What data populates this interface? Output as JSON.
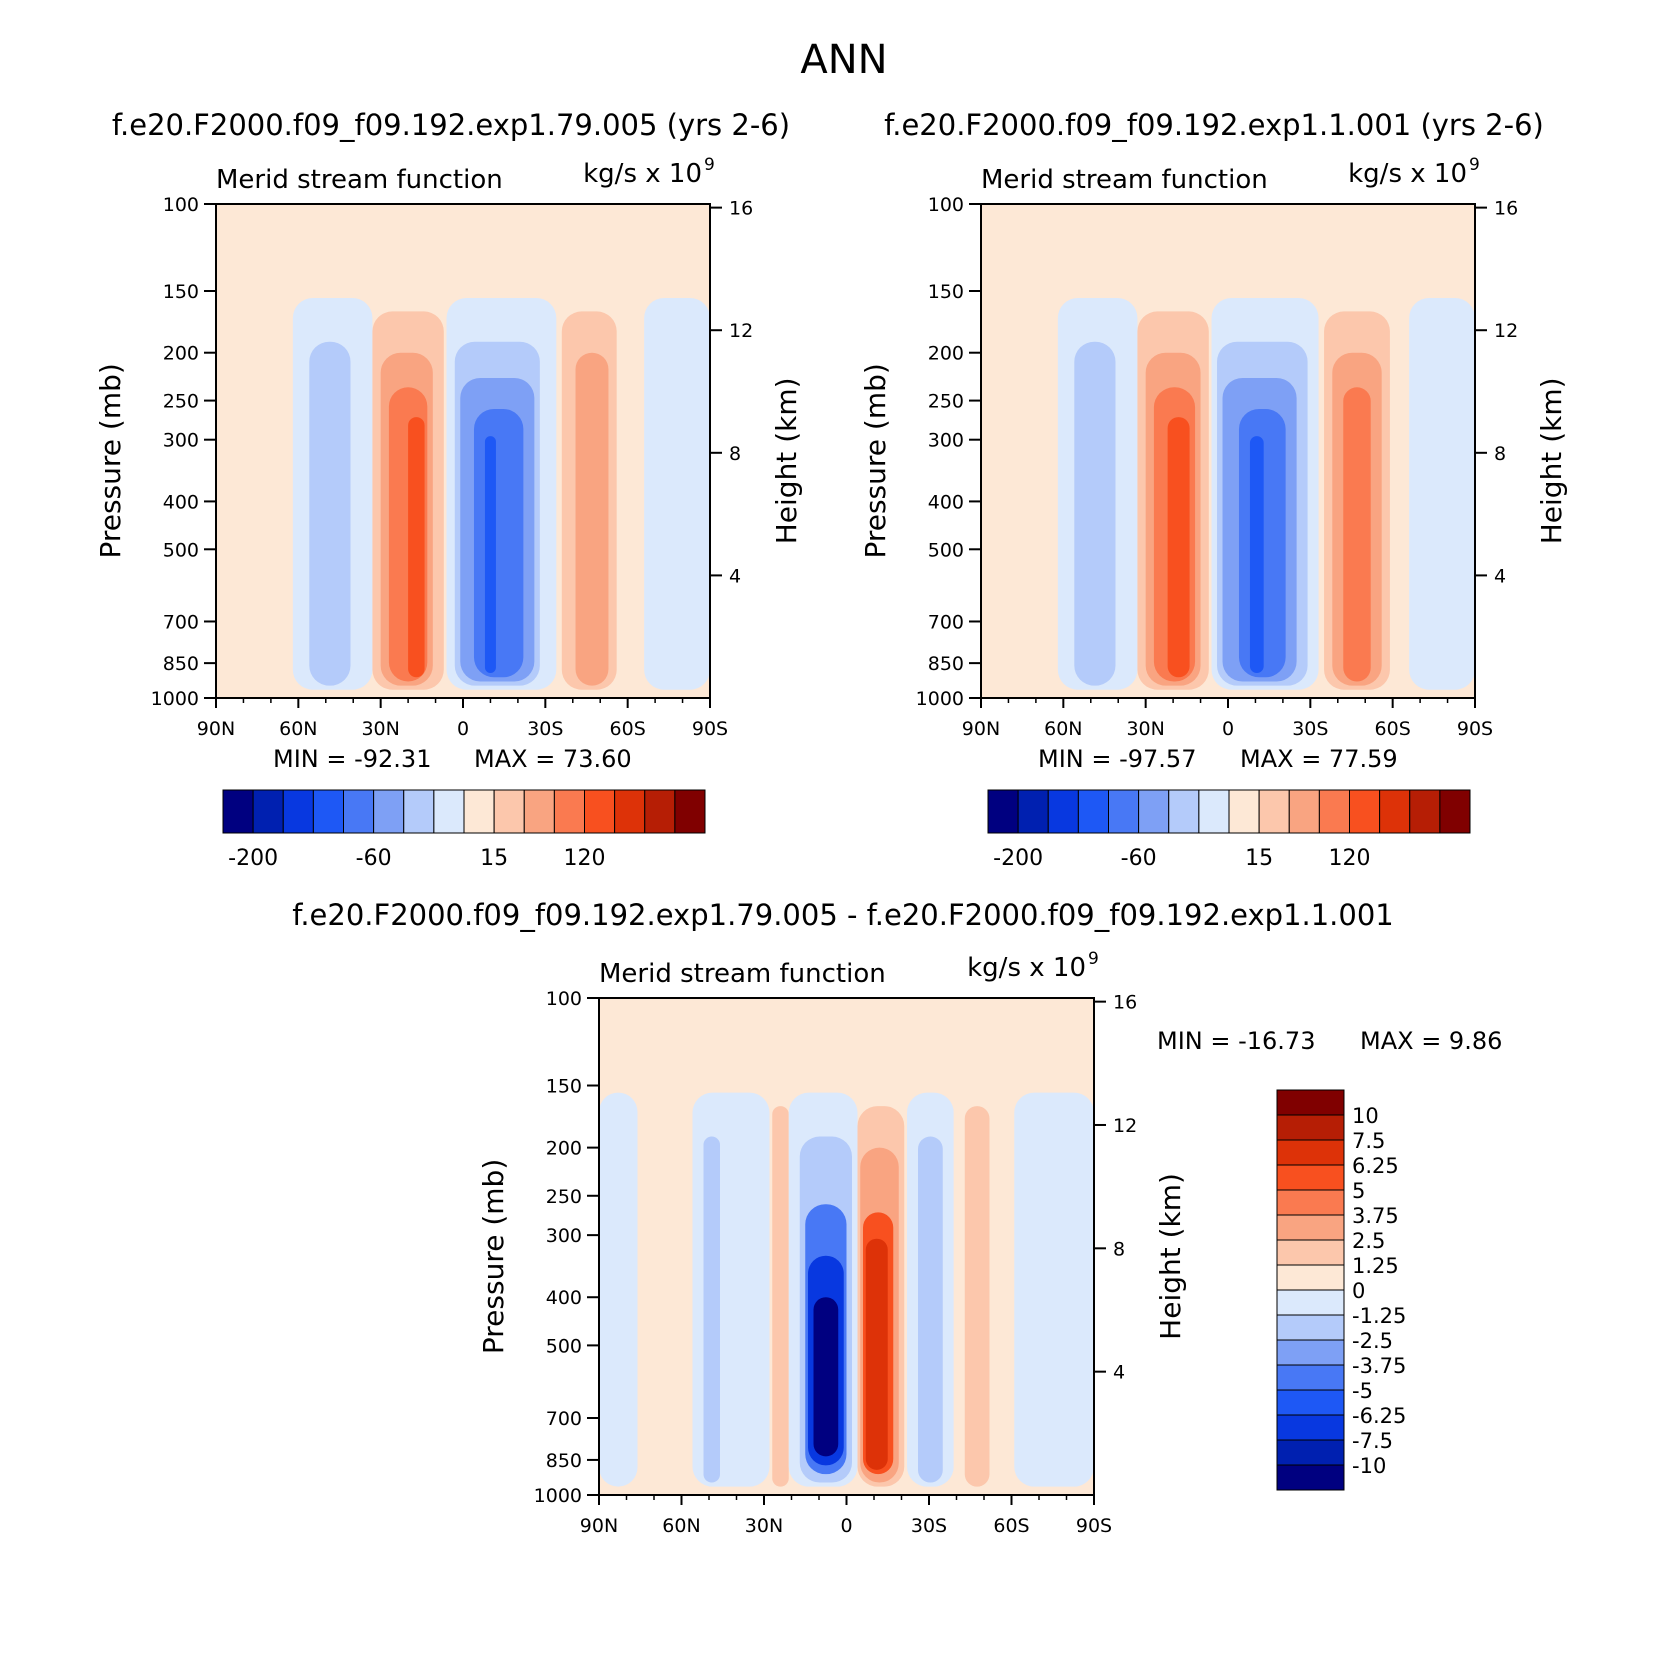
{
  "figure_title": "ANN",
  "colors": {
    "seq_colorbar": [
      "#000080",
      "#0020b0",
      "#0838e0",
      "#1e58f5",
      "#4878f5",
      "#7ea0f5",
      "#b4cbfa",
      "#dbe9fc",
      "#fde8d6",
      "#fcc7ac",
      "#f9a481",
      "#fa7a50",
      "#f8501f",
      "#dd3208",
      "#b61e05",
      "#800000"
    ],
    "diff_colorbar": [
      "#000080",
      "#0020b0",
      "#0838e0",
      "#1e58f5",
      "#4878f5",
      "#7ea0f5",
      "#b4cbfa",
      "#dbe9fc",
      "#fde8d6",
      "#fcc7ac",
      "#f9a481",
      "#fa7a50",
      "#f8501f",
      "#dd3208",
      "#b61e05",
      "#800000"
    ]
  },
  "chart_data": [
    {
      "type": "heatmap",
      "id": "panel1",
      "case_title": "f.e20.F2000.f09_f09.192.exp1.79.005 (yrs 2-6)",
      "variable": "Merid stream function",
      "units": "kg/s x 10",
      "units_exp": "9",
      "xlabel": "",
      "ylabel": "Pressure (mb)",
      "ylabel_right": "Height (km)",
      "x_ticks": [
        "90N",
        "60N",
        "30N",
        "0",
        "30S",
        "60S",
        "90S"
      ],
      "y_ticks": [
        "100",
        "150",
        "200",
        "250",
        "300",
        "400",
        "500",
        "700",
        "850",
        "1000"
      ],
      "y_right_ticks": [
        "16",
        "12",
        "8",
        "4"
      ],
      "xlim": [
        90,
        -90
      ],
      "ylim_mb": [
        1000,
        100
      ],
      "min_label": "MIN = -92.31",
      "max_label": "MAX = 73.60",
      "min": -92.31,
      "max": 73.6,
      "cells": [
        {
          "lat_from": 88,
          "lat_to": 61,
          "lev": 0
        },
        {
          "lat_from": 62,
          "lat_to": 33,
          "lev": -1
        },
        {
          "lat_from": 56,
          "lat_to": 41,
          "lev": -2
        },
        {
          "lat_from": 33,
          "lat_to": 7,
          "lev": 1
        },
        {
          "lat_from": 30,
          "lat_to": 11,
          "lev": 2
        },
        {
          "lat_from": 27,
          "lat_to": 13,
          "lev": 3
        },
        {
          "lat_from": 20,
          "lat_to": 14,
          "lev": 4
        },
        {
          "lat_from": 6,
          "lat_to": -34,
          "lev": -1
        },
        {
          "lat_from": 3,
          "lat_to": -28,
          "lev": -2
        },
        {
          "lat_from": 1,
          "lat_to": -26,
          "lev": -3
        },
        {
          "lat_from": -4,
          "lat_to": -22,
          "lev": -4
        },
        {
          "lat_from": -8,
          "lat_to": -12,
          "lev": -5
        },
        {
          "lat_from": -36,
          "lat_to": -56,
          "lev": 1
        },
        {
          "lat_from": -41,
          "lat_to": -53,
          "lev": 2
        },
        {
          "lat_from": -66,
          "lat_to": -90,
          "lev": -1
        }
      ],
      "colorbar_labels": [
        "-200",
        "-60",
        "15",
        "120"
      ]
    },
    {
      "type": "heatmap",
      "id": "panel2",
      "case_title": "f.e20.F2000.f09_f09.192.exp1.1.001 (yrs 2-6)",
      "variable": "Merid stream function",
      "units": "kg/s x 10",
      "units_exp": "9",
      "xlabel": "",
      "ylabel": "Pressure (mb)",
      "ylabel_right": "Height (km)",
      "x_ticks": [
        "90N",
        "60N",
        "30N",
        "0",
        "30S",
        "60S",
        "90S"
      ],
      "y_ticks": [
        "100",
        "150",
        "200",
        "250",
        "300",
        "400",
        "500",
        "700",
        "850",
        "1000"
      ],
      "y_right_ticks": [
        "16",
        "12",
        "8",
        "4"
      ],
      "xlim": [
        90,
        -90
      ],
      "ylim_mb": [
        1000,
        100
      ],
      "min_label": "MIN = -97.57",
      "max_label": "MAX = 77.59",
      "min": -97.57,
      "max": 77.59,
      "cells": [
        {
          "lat_from": 88,
          "lat_to": 60,
          "lev": 0
        },
        {
          "lat_from": 62,
          "lat_to": 33,
          "lev": -1
        },
        {
          "lat_from": 56,
          "lat_to": 41,
          "lev": -2
        },
        {
          "lat_from": 33,
          "lat_to": 7,
          "lev": 1
        },
        {
          "lat_from": 30,
          "lat_to": 10,
          "lev": 2
        },
        {
          "lat_from": 27,
          "lat_to": 12,
          "lev": 3
        },
        {
          "lat_from": 22,
          "lat_to": 14,
          "lev": 4
        },
        {
          "lat_from": 6,
          "lat_to": -33,
          "lev": -1
        },
        {
          "lat_from": 4,
          "lat_to": -29,
          "lev": -2
        },
        {
          "lat_from": 2,
          "lat_to": -25,
          "lev": -3
        },
        {
          "lat_from": -4,
          "lat_to": -21,
          "lev": -4
        },
        {
          "lat_from": -8,
          "lat_to": -13,
          "lev": -5
        },
        {
          "lat_from": -35,
          "lat_to": -59,
          "lev": 1
        },
        {
          "lat_from": -38,
          "lat_to": -56,
          "lev": 2
        },
        {
          "lat_from": -42,
          "lat_to": -52,
          "lev": 3
        },
        {
          "lat_from": -66,
          "lat_to": -90,
          "lev": -1
        }
      ],
      "colorbar_labels": [
        "-200",
        "-60",
        "15",
        "120"
      ]
    },
    {
      "type": "heatmap",
      "id": "panel3",
      "case_title": "f.e20.F2000.f09_f09.192.exp1.79.005 - f.e20.F2000.f09_f09.192.exp1.1.001",
      "variable": "Merid stream function",
      "units": "kg/s x 10",
      "units_exp": "9",
      "xlabel": "",
      "ylabel": "Pressure (mb)",
      "ylabel_right": "Height (km)",
      "x_ticks": [
        "90N",
        "60N",
        "30N",
        "0",
        "30S",
        "60S",
        "90S"
      ],
      "y_ticks": [
        "100",
        "150",
        "200",
        "250",
        "300",
        "400",
        "500",
        "700",
        "850",
        "1000"
      ],
      "y_right_ticks": [
        "16",
        "12",
        "8",
        "4"
      ],
      "xlim": [
        90,
        -90
      ],
      "ylim_mb": [
        1000,
        100
      ],
      "min_label": "MIN = -16.73",
      "max_label": "MAX = 9.86",
      "min": -16.73,
      "max": 9.86,
      "cells": [
        {
          "lat_from": 90,
          "lat_to": 76,
          "lev": -1
        },
        {
          "lat_from": 76,
          "lat_to": 56,
          "lev": 0
        },
        {
          "lat_from": 56,
          "lat_to": 28,
          "lev": -1
        },
        {
          "lat_from": 52,
          "lat_to": 46,
          "lev": -2
        },
        {
          "lat_from": 27,
          "lat_to": 21,
          "lev": 1
        },
        {
          "lat_from": 21,
          "lat_to": -4,
          "lev": -1
        },
        {
          "lat_from": 17,
          "lat_to": -2,
          "lev": -2
        },
        {
          "lat_from": 15,
          "lat_to": 0,
          "lev": -4
        },
        {
          "lat_from": 14,
          "lat_to": 1,
          "lev": -6
        },
        {
          "lat_from": 12,
          "lat_to": 3,
          "lev": -8
        },
        {
          "lat_from": -4,
          "lat_to": -21,
          "lev": 1
        },
        {
          "lat_from": -5,
          "lat_to": -19,
          "lev": 2
        },
        {
          "lat_from": -6,
          "lat_to": -17,
          "lev": 4
        },
        {
          "lat_from": -7,
          "lat_to": -15,
          "lev": 5
        },
        {
          "lat_from": -22,
          "lat_to": -39,
          "lev": -1
        },
        {
          "lat_from": -26,
          "lat_to": -35,
          "lev": -2
        },
        {
          "lat_from": -39,
          "lat_to": -61,
          "lev": 0
        },
        {
          "lat_from": -43,
          "lat_to": -52,
          "lev": 1
        },
        {
          "lat_from": -61,
          "lat_to": -90,
          "lev": -1
        }
      ],
      "colorbar_labels": [
        "10",
        "7.5",
        "6.25",
        "5",
        "3.75",
        "2.5",
        "1.25",
        "0",
        "-1.25",
        "-2.5",
        "-3.75",
        "-5",
        "-6.25",
        "-7.5",
        "-10"
      ]
    }
  ]
}
